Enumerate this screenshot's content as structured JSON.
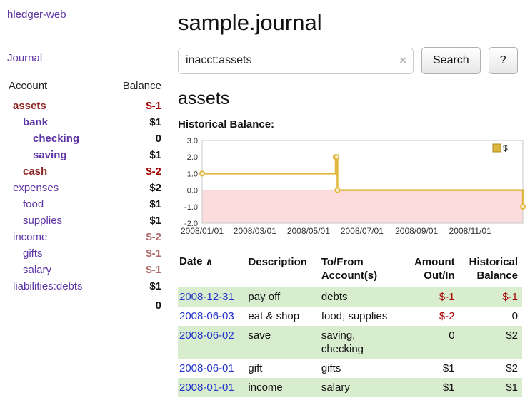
{
  "brand": {
    "title": "hledger-web"
  },
  "nav": {
    "journal": "Journal"
  },
  "main": {
    "title": "sample.journal",
    "account_heading": "assets",
    "chart_title": "Historical Balance:"
  },
  "search": {
    "value": "inacct:assets",
    "clear_icon": "×",
    "search_button": "Search",
    "help_button": "?"
  },
  "sidebar": {
    "account_header": "Account",
    "balance_header": "Balance",
    "accounts": [
      {
        "name": "assets",
        "balance": "$-1",
        "level": 1
      },
      {
        "name": "bank",
        "balance": "$1",
        "level": 2
      },
      {
        "name": "checking",
        "balance": "0",
        "level": 3
      },
      {
        "name": "saving",
        "balance": "$1",
        "level": 3
      },
      {
        "name": "cash",
        "balance": "$-2",
        "level": 2
      },
      {
        "name": "expenses",
        "balance": "$2",
        "level": 1
      },
      {
        "name": "food",
        "balance": "$1",
        "level": 2
      },
      {
        "name": "supplies",
        "balance": "$1",
        "level": 2
      },
      {
        "name": "income",
        "balance": "$-2",
        "level": 1
      },
      {
        "name": "gifts",
        "balance": "$-1",
        "level": 2
      },
      {
        "name": "salary",
        "balance": "$-1",
        "level": 2
      },
      {
        "name": "liabilities:debts",
        "balance": "$1",
        "level": 1
      }
    ],
    "total": "0"
  },
  "register": {
    "header": {
      "date": "Date",
      "sort_icon": "∧",
      "description": "Description",
      "tofrom_1": "To/From",
      "tofrom_2": "Account(s)",
      "amount_1": "Amount",
      "amount_2": "Out/In",
      "balance_1": "Historical",
      "balance_2": "Balance"
    },
    "rows": [
      {
        "date": "2008-12-31",
        "description": "pay off",
        "accounts": "debts",
        "amount": "$-1",
        "balance": "$-1"
      },
      {
        "date": "2008-06-03",
        "description": "eat & shop",
        "accounts": "food, supplies",
        "amount": "$-2",
        "balance": "0"
      },
      {
        "date": "2008-06-02",
        "description": "save",
        "accounts": "saving, checking",
        "amount": "0",
        "balance": "$2"
      },
      {
        "date": "2008-06-01",
        "description": "gift",
        "accounts": "gifts",
        "amount": "$1",
        "balance": "$2"
      },
      {
        "date": "2008-01-01",
        "description": "income",
        "accounts": "salary",
        "amount": "$1",
        "balance": "$1"
      }
    ]
  },
  "colors": {
    "accent_purple": "#5e35a5",
    "negative": "#a40000",
    "negative_soft": "#b36b6b",
    "link_blue": "#2233cc",
    "row_green": "#d8ecce",
    "chart_gold": "#e0b73e",
    "chart_negative_bg": "#fcdcdc"
  },
  "chart_data": {
    "type": "line",
    "style": "step-after",
    "title": "Historical Balance:",
    "legend": {
      "label": "$",
      "position": "top-right"
    },
    "ylim": [
      -2.0,
      3.0
    ],
    "yticks": [
      3.0,
      2.0,
      1.0,
      0.0,
      -1.0,
      -2.0
    ],
    "x_range": [
      "2008-01-01",
      "2008-12-31"
    ],
    "xticks": [
      {
        "date": "2008-01-01",
        "label": "2008/01/01"
      },
      {
        "date": "2008-03-01",
        "label": "2008/03/01"
      },
      {
        "date": "2008-05-01",
        "label": "2008/05/01"
      },
      {
        "date": "2008-07-01",
        "label": "2008/07/01"
      },
      {
        "date": "2008-09-01",
        "label": "2008/09/01"
      },
      {
        "date": "2008-11-01",
        "label": "2008/11/01"
      }
    ],
    "series": [
      {
        "name": "$",
        "points": [
          [
            "2008-01-01",
            1
          ],
          [
            "2008-06-01",
            2
          ],
          [
            "2008-06-02",
            2
          ],
          [
            "2008-06-03",
            0
          ],
          [
            "2008-12-31",
            -1
          ]
        ]
      }
    ],
    "grid": false
  }
}
